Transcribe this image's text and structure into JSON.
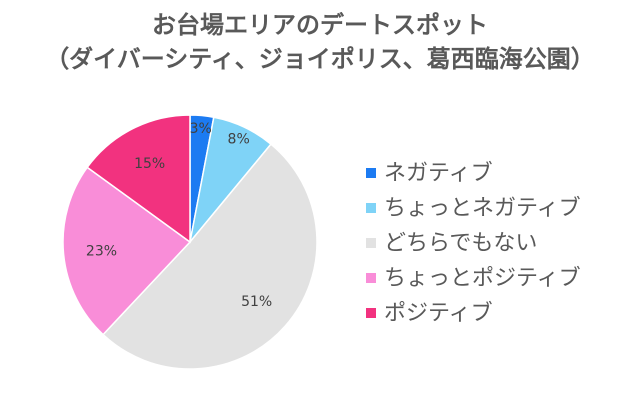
{
  "chart_data": {
    "type": "pie",
    "title_lines": [
      "お台場エリアのデートスポット",
      "（ダイバーシティ、ジョイポリス、葛西臨海公園）"
    ],
    "categories": [
      "ネガティブ",
      "ちょっとネガティブ",
      "どちらでもない",
      "ちょっとポジティブ",
      "ポジティブ"
    ],
    "values": [
      3,
      8,
      51,
      23,
      15
    ],
    "data_labels": [
      "3%",
      "8%",
      "51%",
      "23%",
      "15%"
    ],
    "colors": [
      "#1C7BF2",
      "#7FD3F7",
      "#E2E2E2",
      "#F98DD8",
      "#F2327F"
    ],
    "legend_position": "right"
  },
  "legend": {
    "items": [
      {
        "label": "ネガティブ",
        "color": "#1C7BF2"
      },
      {
        "label": "ちょっとネガティブ",
        "color": "#7FD3F7"
      },
      {
        "label": "どちらでもない",
        "color": "#E2E2E2"
      },
      {
        "label": "ちょっとポジティブ",
        "color": "#F98DD8"
      },
      {
        "label": "ポジティブ",
        "color": "#F2327F"
      }
    ]
  }
}
